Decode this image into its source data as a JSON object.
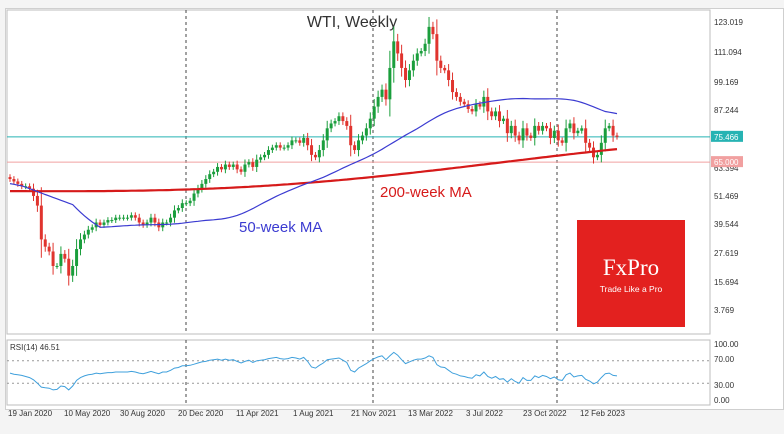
{
  "chart_data": {
    "type": "candlestick",
    "title": "WTI, Weekly",
    "price_axis": {
      "ticks": [
        "123.019",
        "111.094",
        "99.169",
        "87.244",
        "75.466",
        "63.394",
        "51.469",
        "39.544",
        "27.619",
        "15.694",
        "3.769"
      ],
      "ylim": [
        0,
        126
      ],
      "current_price_label": "75.466",
      "level_label": "65.000"
    },
    "current_price": 75.466,
    "level_line": 65.0,
    "x_labels": [
      "19 Jan 2020",
      "10 May 2020",
      "30 Aug 2020",
      "20 Dec 2020",
      "11 Apr 2021",
      "1 Aug 2021",
      "21 Nov 2021",
      "13 Mar 2022",
      "3 Jul 2022",
      "23 Oct 2022",
      "12 Feb 2023"
    ],
    "ma_labels": {
      "ma50": "50-week MA",
      "ma200": "200-week MA"
    },
    "brand": {
      "name": "FxPro",
      "tagline": "Trade Like a Pro",
      "color": "#e3211f"
    },
    "colors": {
      "up": "#1a9e3c",
      "down": "#e0342e",
      "ma50": "#3b3bd1",
      "ma200": "#d61a1a",
      "price_line": "#26b3b3",
      "level": "#f1a0a0",
      "rsi": "#3fa0dc"
    },
    "closes": [
      58,
      57,
      56,
      55,
      55,
      54,
      51,
      47,
      33,
      30,
      28,
      22,
      22,
      27,
      25,
      18,
      22,
      29,
      33,
      35,
      37,
      38,
      40,
      39,
      40,
      41,
      41,
      42,
      42,
      42,
      42,
      43,
      42,
      40,
      39,
      40,
      42,
      40,
      38,
      40,
      40,
      42,
      45,
      46,
      48,
      48,
      49,
      52,
      54,
      56,
      58,
      60,
      61,
      63,
      62,
      64,
      63,
      64,
      62,
      61,
      64,
      65,
      63,
      66,
      67,
      68,
      70,
      71,
      72,
      71,
      71,
      72,
      74,
      74,
      73,
      75,
      72,
      68,
      67,
      70,
      74,
      79,
      81,
      82,
      84,
      82,
      80,
      72,
      70,
      74,
      76,
      79,
      83,
      88,
      92,
      95,
      91,
      104,
      115,
      110,
      104,
      99,
      103,
      107,
      110,
      111,
      114,
      121,
      118,
      107,
      104,
      103,
      99,
      94,
      92,
      90,
      89,
      87,
      86,
      89,
      88,
      92,
      86,
      84,
      86,
      82,
      83,
      77,
      80,
      76,
      74,
      79,
      76,
      75,
      80,
      78,
      80,
      79,
      75,
      78,
      74,
      73,
      79,
      81,
      77,
      78,
      79,
      73,
      71,
      67,
      68,
      73,
      79,
      80,
      76,
      75.5
    ],
    "rsi": {
      "label": "RSI(14) 46.51",
      "ticks": [
        "100.00",
        "70.00",
        "30.00",
        "0.00"
      ],
      "levels": [
        70,
        30
      ],
      "values": [
        48,
        46,
        45,
        44,
        42,
        40,
        36,
        30,
        23,
        22,
        21,
        18,
        19,
        25,
        24,
        18,
        25,
        35,
        40,
        43,
        45,
        46,
        48,
        47,
        48,
        49,
        49,
        50,
        50,
        50,
        50,
        51,
        50,
        48,
        47,
        49,
        51,
        49,
        47,
        50,
        50,
        53,
        57,
        58,
        61,
        61,
        62,
        64,
        66,
        68,
        69,
        71,
        72,
        73,
        71,
        73,
        71,
        72,
        69,
        66,
        69,
        71,
        67,
        70,
        71,
        72,
        74,
        75,
        76,
        74,
        73,
        74,
        76,
        75,
        73,
        76,
        69,
        59,
        57,
        62,
        66,
        72,
        73,
        74,
        75,
        71,
        67,
        53,
        50,
        57,
        61,
        65,
        70,
        74,
        77,
        79,
        72,
        79,
        85,
        80,
        72,
        65,
        68,
        71,
        73,
        73,
        75,
        79,
        76,
        63,
        59,
        58,
        53,
        48,
        46,
        43,
        42,
        40,
        39,
        45,
        43,
        50,
        42,
        39,
        42,
        37,
        38,
        32,
        38,
        33,
        30,
        40,
        35,
        35,
        43,
        40,
        44,
        42,
        38,
        41,
        36,
        35,
        45,
        48,
        41,
        43,
        44,
        37,
        34,
        29,
        32,
        40,
        47,
        48,
        44,
        43
      ]
    }
  }
}
